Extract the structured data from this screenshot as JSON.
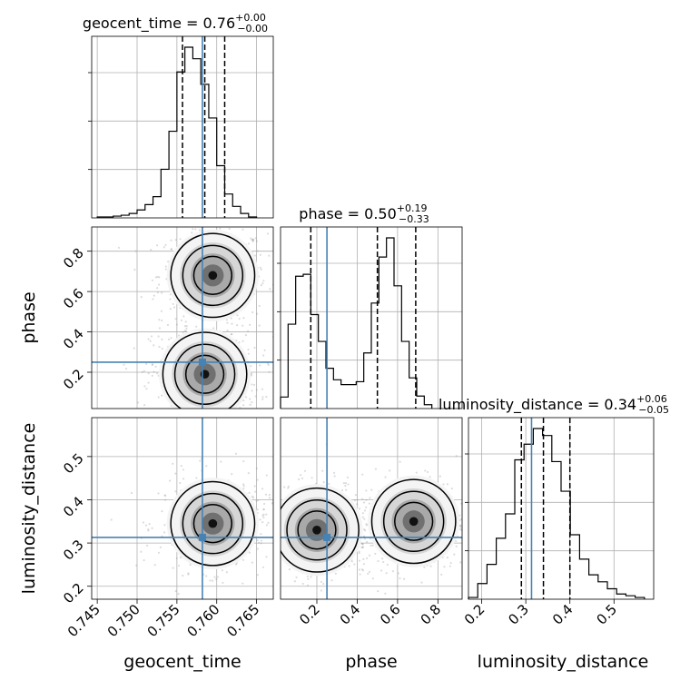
{
  "chart_data": {
    "type": "corner",
    "parameters": [
      "geocent_time",
      "phase",
      "luminosity_distance"
    ],
    "truth": {
      "geocent_time": 0.7582,
      "phase": 0.25,
      "luminosity_distance": 0.313
    },
    "titles": [
      {
        "name": "geocent_time",
        "value": "0.76",
        "plus": "+0.00",
        "minus": "−0.00"
      },
      {
        "name": "phase",
        "value": "0.50",
        "plus": "+0.19",
        "minus": "−0.33"
      },
      {
        "name": "luminosity_distance",
        "value": "0.34",
        "plus": "+0.06",
        "minus": "−0.05"
      }
    ],
    "ranges": {
      "geocent_time": [
        0.7443,
        0.7671
      ],
      "phase": [
        0.02,
        0.92
      ],
      "luminosity_distance": [
        0.17,
        0.59
      ]
    },
    "ticks": {
      "geocent_time": [
        "0.745",
        "0.750",
        "0.755",
        "0.760",
        "0.765"
      ],
      "phase": [
        "0.2",
        "0.4",
        "0.6",
        "0.8"
      ],
      "luminosity_distance": [
        "0.2",
        "0.3",
        "0.4",
        "0.5"
      ]
    },
    "quantiles": {
      "geocent_time": [
        0.7557,
        0.7585,
        0.761
      ],
      "phase": [
        0.17,
        0.5,
        0.69
      ],
      "luminosity_distance": [
        0.29,
        0.34,
        0.4
      ]
    },
    "histograms": {
      "geocent_time": {
        "edges_start": 0.745,
        "bin_width": 0.001,
        "counts": [
          1,
          1,
          2,
          3,
          5,
          9,
          15,
          24,
          55,
          98,
          165,
          193,
          180,
          151,
          113,
          59,
          27,
          13,
          5,
          1
        ]
      },
      "phase": {
        "edges_start": 0.02,
        "bin_width": 0.0375,
        "counts": [
          12,
          88,
          138,
          140,
          98,
          70,
          42,
          30,
          25,
          25,
          28,
          58,
          110,
          158,
          178,
          128,
          70,
          32,
          13,
          4
        ]
      },
      "luminosity_distance": {
        "edges_start": 0.17,
        "bin_width": 0.021,
        "counts": [
          1,
          9,
          20,
          35,
          49,
          80,
          89,
          98,
          94,
          79,
          62,
          37,
          23,
          14,
          10,
          6,
          3,
          2,
          1
        ]
      }
    },
    "density_modes": [
      {
        "x": "geocent_time",
        "y": "phase",
        "peaks": [
          [
            0.7595,
            0.68
          ],
          [
            0.7585,
            0.19
          ]
        ]
      },
      {
        "x": "geocent_time",
        "y": "luminosity_distance",
        "peaks": [
          [
            0.7595,
            0.345
          ]
        ]
      },
      {
        "x": "phase",
        "y": "luminosity_distance",
        "peaks": [
          [
            0.68,
            0.35
          ],
          [
            0.2,
            0.33
          ]
        ]
      }
    ],
    "grid": true,
    "truth_color": "#4682b4",
    "contour_color": "#000000"
  }
}
